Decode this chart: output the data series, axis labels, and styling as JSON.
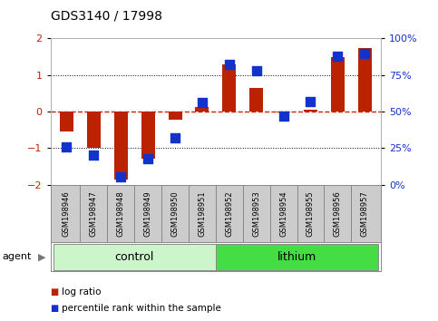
{
  "title": "GDS3140 / 17998",
  "samples": [
    "GSM198946",
    "GSM198947",
    "GSM198948",
    "GSM198949",
    "GSM198950",
    "GSM198951",
    "GSM198952",
    "GSM198953",
    "GSM198954",
    "GSM198955",
    "GSM198956",
    "GSM198957"
  ],
  "log_ratio": [
    -0.55,
    -1.0,
    -1.85,
    -1.3,
    -0.22,
    0.12,
    1.3,
    0.65,
    -0.02,
    0.06,
    1.5,
    1.75
  ],
  "percentile_rank": [
    26,
    20,
    5,
    18,
    32,
    56,
    82,
    78,
    47,
    57,
    88,
    90
  ],
  "group_label": "agent",
  "group_arrow": "▶",
  "control_label": "control",
  "lithium_label": "lithium",
  "control_color": "#ccf5cc",
  "lithium_color": "#44dd44",
  "ylim_left": [
    -2,
    2
  ],
  "ylim_right": [
    0,
    100
  ],
  "yticks_left": [
    -2,
    -1,
    0,
    1,
    2
  ],
  "yticks_right": [
    0,
    25,
    50,
    75,
    100
  ],
  "yticklabels_right": [
    "0%",
    "25%",
    "50%",
    "75%",
    "100%"
  ],
  "bar_color": "#bb2200",
  "dot_color": "#1133cc",
  "background": "#ffffff",
  "plot_bg": "#ffffff",
  "sample_bg": "#cccccc",
  "zero_line_color": "#cc2200",
  "dot_line_color": "#888888",
  "legend_bar_label": "log ratio",
  "legend_dot_label": "percentile rank within the sample",
  "bar_width": 0.5
}
